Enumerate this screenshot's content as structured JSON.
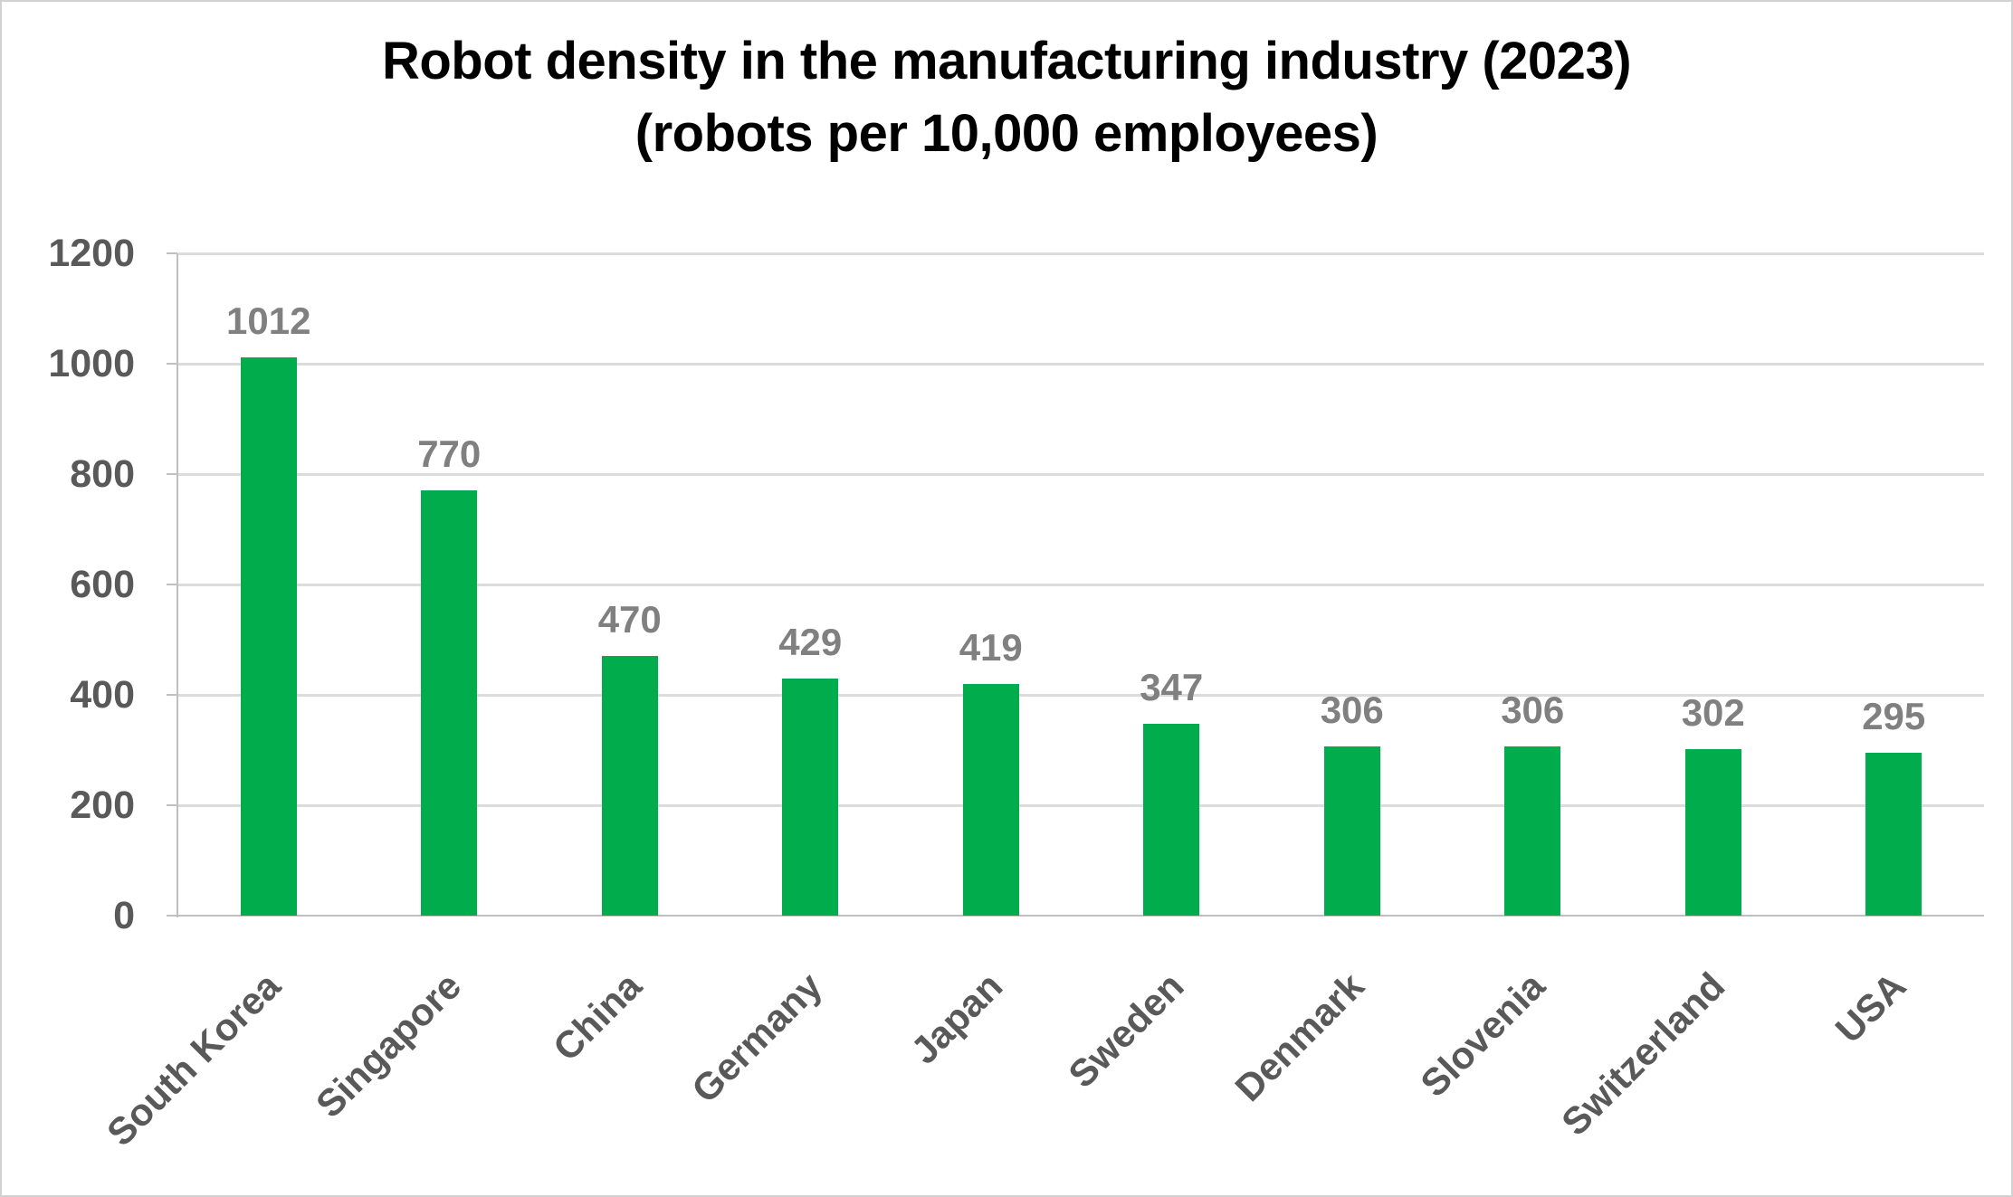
{
  "chart_data": {
    "type": "bar",
    "title_line1": "Robot density in the manufacturing industry (2023)",
    "title_line2": "(robots per 10,000 employees)",
    "categories": [
      "South Korea",
      "Singapore",
      "China",
      "Germany",
      "Japan",
      "Sweden",
      "Denmark",
      "Slovenia",
      "Switzerland",
      "USA"
    ],
    "values": [
      1012,
      770,
      470,
      429,
      419,
      347,
      306,
      306,
      302,
      295
    ],
    "xlabel": "",
    "ylabel": "",
    "ylim": [
      0,
      1200
    ],
    "y_ticks": [
      0,
      200,
      400,
      600,
      800,
      1000,
      1200
    ],
    "grid": true,
    "legend_position": "none",
    "bar_color": "#00ac4c",
    "value_label_color": "#808080",
    "axis_tick_label_color": "#595959",
    "gridline_color": "#dcdcdc",
    "axis_line_color": "#bfbfbf",
    "title_color": "#000000"
  }
}
